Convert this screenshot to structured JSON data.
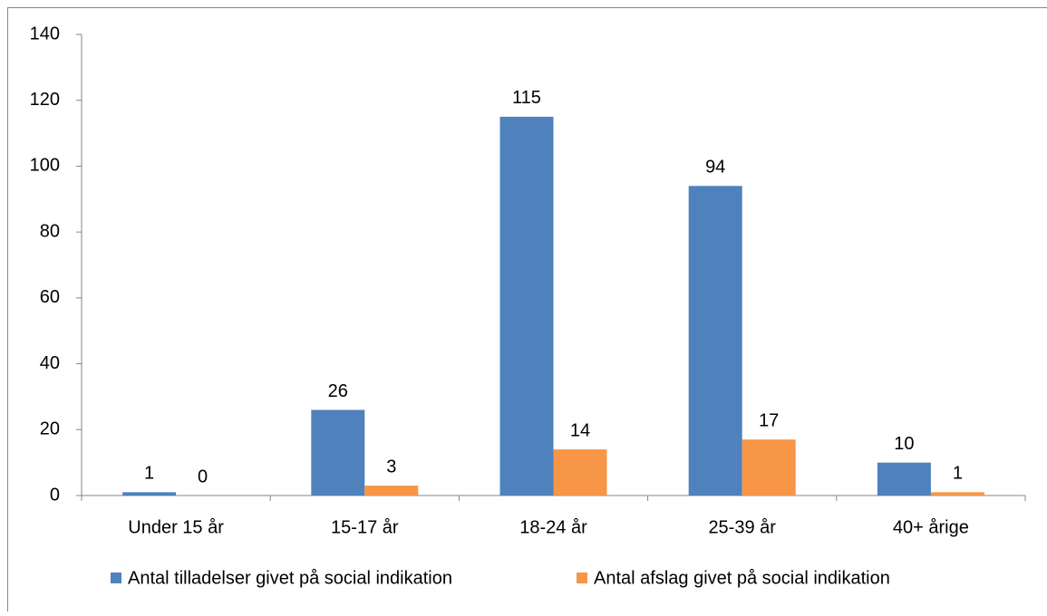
{
  "chart_data": {
    "type": "bar",
    "categories": [
      "Under 15 år",
      "15-17 år",
      "18-24 år",
      "25-39 år",
      "40+ årige"
    ],
    "series": [
      {
        "name": "Antal tilladelser givet på social indikation",
        "color": "#4f81bd",
        "values": [
          1,
          26,
          115,
          94,
          10
        ]
      },
      {
        "name": "Antal afslag givet på social indikation",
        "color": "#f79646",
        "values": [
          0,
          3,
          14,
          17,
          1
        ]
      }
    ],
    "ylim": [
      0,
      140
    ],
    "yticks": [
      0,
      20,
      40,
      60,
      80,
      100,
      120,
      140
    ],
    "grid": false,
    "legend": "bottom"
  }
}
